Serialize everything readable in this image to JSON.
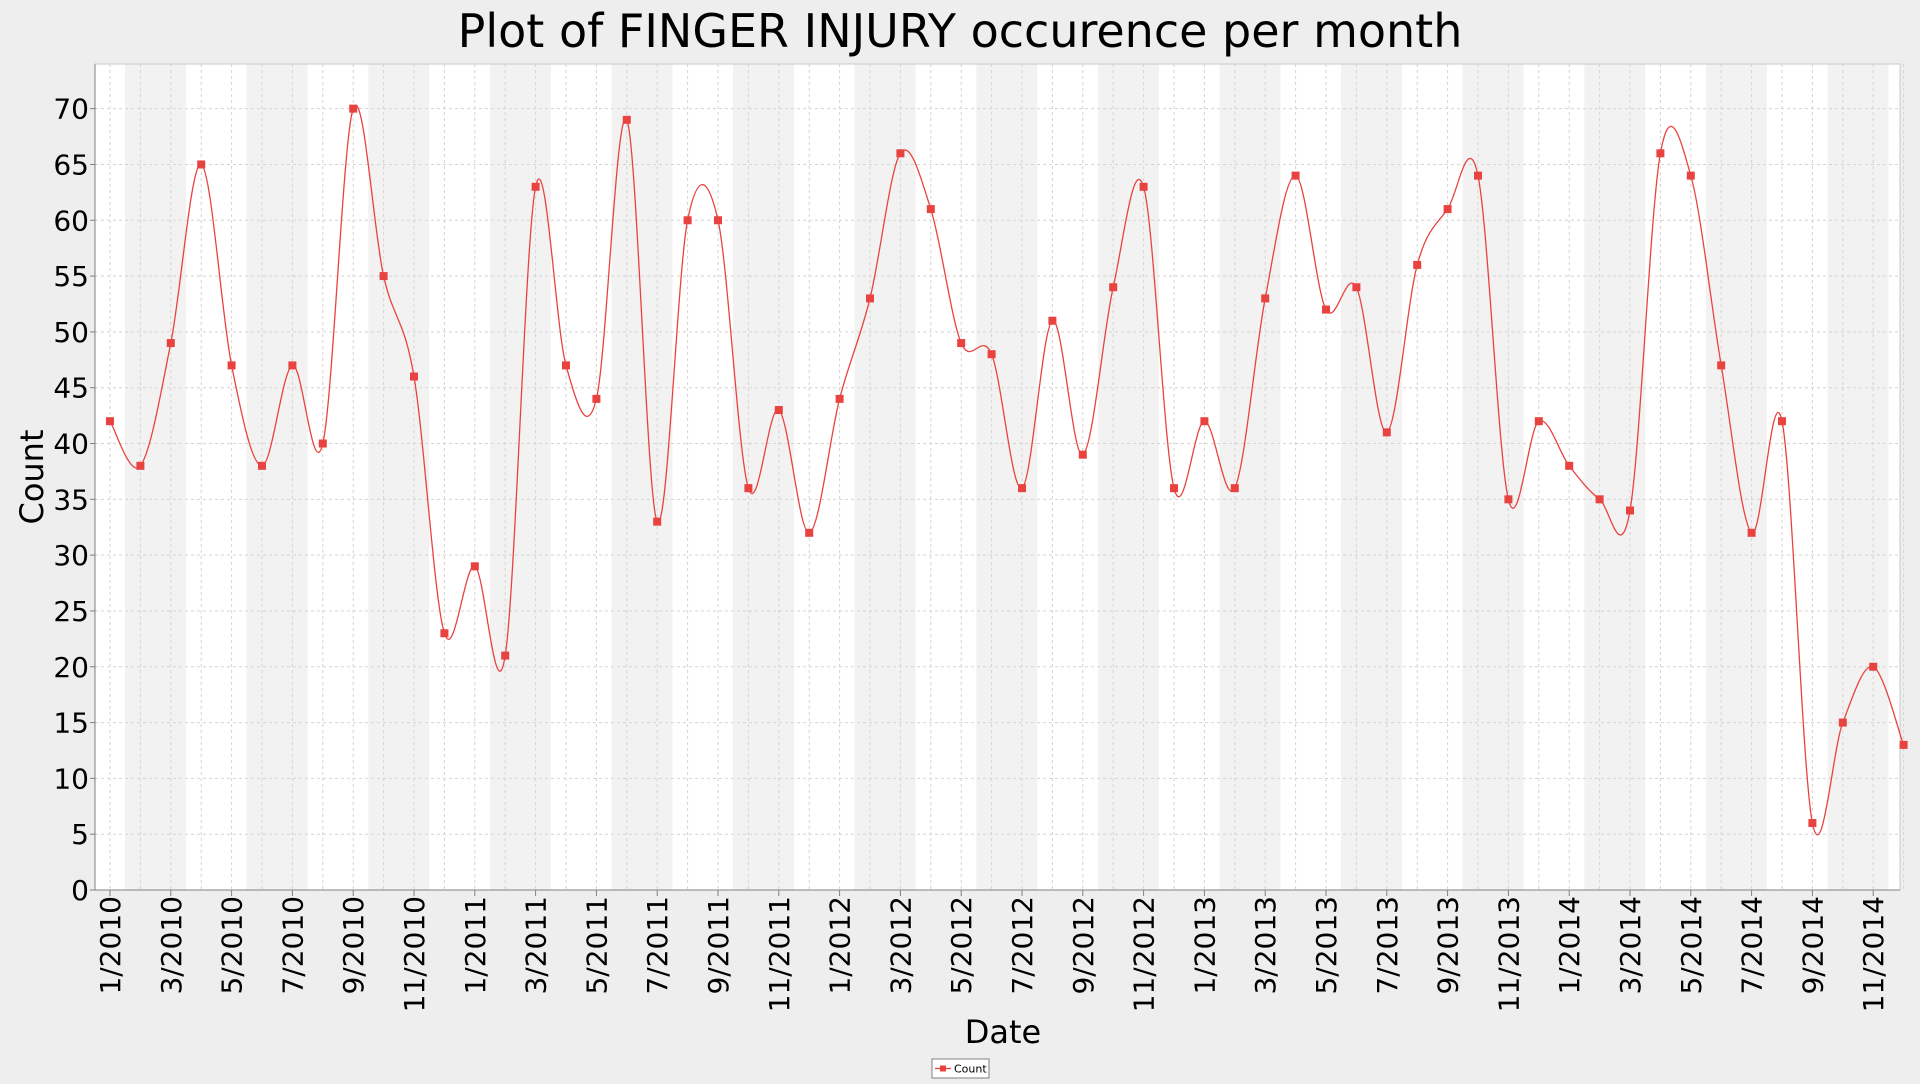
{
  "chart_data": {
    "type": "line",
    "title": "Plot of FINGER INJURY occurence per month",
    "xlabel": "Date",
    "ylabel": "Count",
    "ylim": [
      0,
      74
    ],
    "yticks": [
      0,
      5,
      10,
      15,
      20,
      25,
      30,
      35,
      40,
      45,
      50,
      55,
      60,
      65,
      70
    ],
    "x_tick_labels": [
      "1/2010",
      "3/2010",
      "5/2010",
      "7/2010",
      "9/2010",
      "11/2010",
      "1/2011",
      "3/2011",
      "5/2011",
      "7/2011",
      "9/2011",
      "11/2011",
      "1/2012",
      "3/2012",
      "5/2012",
      "7/2012",
      "9/2012",
      "11/2012",
      "1/2013",
      "3/2013",
      "5/2013",
      "7/2013",
      "9/2013",
      "11/2013",
      "1/2014",
      "3/2014",
      "5/2014",
      "7/2014",
      "9/2014",
      "11/2014"
    ],
    "grid": true,
    "legend_position": "bottom-center",
    "series": [
      {
        "name": "Count",
        "color": "#e8433f",
        "values": [
          42,
          38,
          49,
          65,
          47,
          38,
          47,
          40,
          70,
          55,
          46,
          23,
          29,
          21,
          63,
          47,
          44,
          69,
          33,
          60,
          60,
          36,
          43,
          32,
          44,
          53,
          66,
          61,
          49,
          48,
          36,
          51,
          39,
          54,
          63,
          36,
          42,
          36,
          53,
          64,
          52,
          54,
          41,
          56,
          61,
          64,
          35,
          42,
          38,
          35,
          34,
          66,
          64,
          47,
          32,
          42,
          6,
          15,
          20,
          13
        ]
      }
    ]
  },
  "legend": {
    "label": "Count"
  },
  "colors": {
    "background": "#eeeeee",
    "plot_stripe_light": "#ffffff",
    "plot_stripe_dark": "#f2f2f2",
    "gridline": "#d4d4d4",
    "series": "#e8433f"
  }
}
